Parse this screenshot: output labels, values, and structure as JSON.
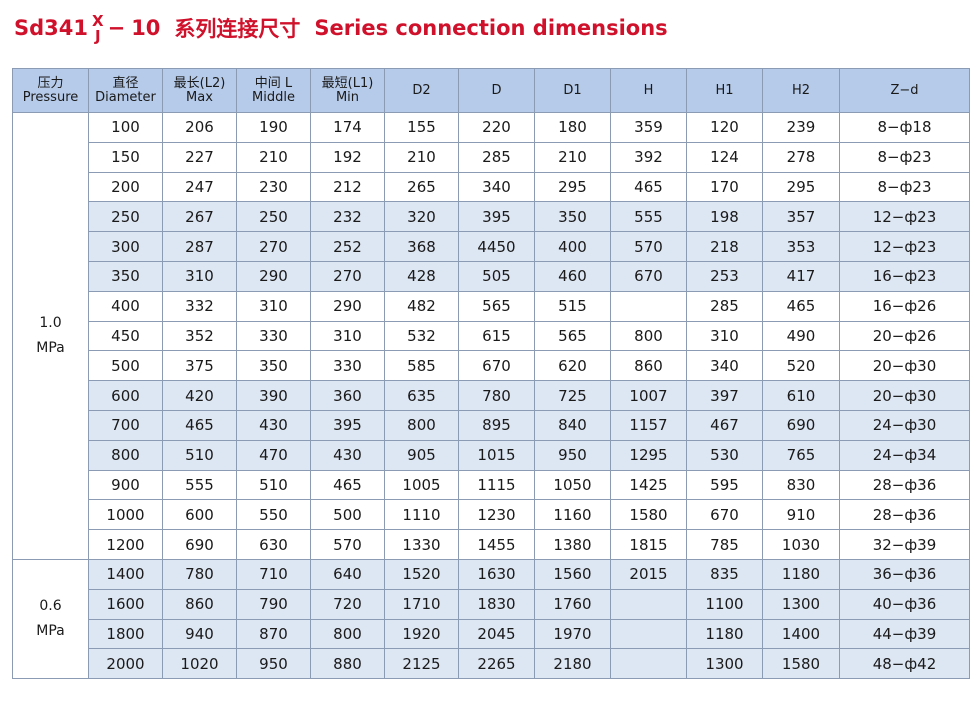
{
  "title": {
    "model": "Sd341",
    "sup": "X",
    "sub": "J",
    "suffix": "10",
    "cn": "系列连接尺寸",
    "en": "Series connection dimensions"
  },
  "headers": [
    {
      "cn": "压力",
      "en": "Pressure"
    },
    {
      "cn": "直径",
      "en": "Diameter"
    },
    {
      "cn": "最长(L2)",
      "en": "Max"
    },
    {
      "cn": "中间 L",
      "en": "Middle"
    },
    {
      "cn": "最短(L1)",
      "en": "Min"
    },
    {
      "cn": "D2",
      "en": ""
    },
    {
      "cn": "D",
      "en": ""
    },
    {
      "cn": "D1",
      "en": ""
    },
    {
      "cn": "H",
      "en": ""
    },
    {
      "cn": "H1",
      "en": ""
    },
    {
      "cn": "H2",
      "en": ""
    },
    {
      "cn": "Z−d",
      "en": ""
    }
  ],
  "groups": [
    {
      "pressure": [
        "1.0",
        "MPa"
      ],
      "rows": [
        [
          "100",
          "206",
          "190",
          "174",
          "155",
          "220",
          "180",
          "359",
          "120",
          "239",
          "8−ф18"
        ],
        [
          "150",
          "227",
          "210",
          "192",
          "210",
          "285",
          "210",
          "392",
          "124",
          "278",
          "8−ф23"
        ],
        [
          "200",
          "247",
          "230",
          "212",
          "265",
          "340",
          "295",
          "465",
          "170",
          "295",
          "8−ф23"
        ],
        [
          "250",
          "267",
          "250",
          "232",
          "320",
          "395",
          "350",
          "555",
          "198",
          "357",
          "12−ф23"
        ],
        [
          "300",
          "287",
          "270",
          "252",
          "368",
          "4450",
          "400",
          "570",
          "218",
          "353",
          "12−ф23"
        ],
        [
          "350",
          "310",
          "290",
          "270",
          "428",
          "505",
          "460",
          "670",
          "253",
          "417",
          "16−ф23"
        ],
        [
          "400",
          "332",
          "310",
          "290",
          "482",
          "565",
          "515",
          "",
          "285",
          "465",
          "16−ф26"
        ],
        [
          "450",
          "352",
          "330",
          "310",
          "532",
          "615",
          "565",
          "800",
          "310",
          "490",
          "20−ф26"
        ],
        [
          "500",
          "375",
          "350",
          "330",
          "585",
          "670",
          "620",
          "860",
          "340",
          "520",
          "20−ф30"
        ],
        [
          "600",
          "420",
          "390",
          "360",
          "635",
          "780",
          "725",
          "1007",
          "397",
          "610",
          "20−ф30"
        ],
        [
          "700",
          "465",
          "430",
          "395",
          "800",
          "895",
          "840",
          "1157",
          "467",
          "690",
          "24−ф30"
        ],
        [
          "800",
          "510",
          "470",
          "430",
          "905",
          "1015",
          "950",
          "1295",
          "530",
          "765",
          "24−ф34"
        ],
        [
          "900",
          "555",
          "510",
          "465",
          "1005",
          "1115",
          "1050",
          "1425",
          "595",
          "830",
          "28−ф36"
        ],
        [
          "1000",
          "600",
          "550",
          "500",
          "1110",
          "1230",
          "1160",
          "1580",
          "670",
          "910",
          "28−ф36"
        ],
        [
          "1200",
          "690",
          "630",
          "570",
          "1330",
          "1455",
          "1380",
          "1815",
          "785",
          "1030",
          "32−ф39"
        ]
      ]
    },
    {
      "pressure": [
        "0.6",
        "MPa"
      ],
      "rows": [
        [
          "1400",
          "780",
          "710",
          "640",
          "1520",
          "1630",
          "1560",
          "2015",
          "835",
          "1180",
          "36−ф36"
        ],
        [
          "1600",
          "860",
          "790",
          "720",
          "1710",
          "1830",
          "1760",
          "",
          "1100",
          "1300",
          "40−ф36"
        ],
        [
          "1800",
          "940",
          "870",
          "800",
          "1920",
          "2045",
          "1970",
          "",
          "1180",
          "1400",
          "44−ф39"
        ],
        [
          "2000",
          "1020",
          "950",
          "880",
          "2125",
          "2265",
          "2180",
          "",
          "1300",
          "1580",
          "48−ф42"
        ]
      ]
    }
  ],
  "colors": {
    "title": "#d0112b",
    "header_bg": "#b6cbe9",
    "shade_bg": "#dde6f3",
    "border": "#8a9bb3"
  }
}
